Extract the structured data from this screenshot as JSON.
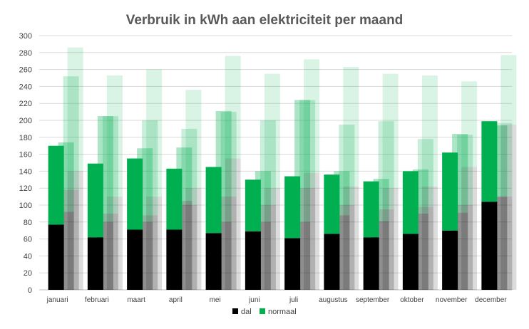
{
  "chart_data": {
    "type": "bar",
    "stacked": true,
    "title": "Verbruik in kWh aan elektriciteit per maand",
    "xlabel": "",
    "ylabel": "",
    "ylim": [
      0,
      300
    ],
    "yticks": [
      0,
      20,
      40,
      60,
      80,
      100,
      120,
      140,
      160,
      180,
      200,
      220,
      240,
      260,
      280,
      300
    ],
    "grid": true,
    "legend_position": "bottom",
    "categories": [
      "januari",
      "februari",
      "maart",
      "april",
      "mei",
      "juni",
      "juli",
      "augustus",
      "september",
      "oktober",
      "november",
      "december"
    ],
    "series": [
      {
        "name": "dal",
        "color": "#000000",
        "values": [
          77,
          62,
          71,
          71,
          67,
          69,
          61,
          66,
          62,
          66,
          70,
          104
        ]
      },
      {
        "name": "normaal",
        "color": "#00b050",
        "values": [
          93,
          87,
          84,
          72,
          78,
          61,
          73,
          70,
          66,
          74,
          92,
          95
        ]
      }
    ],
    "ghost_layers": [
      {
        "opacity": 0.55,
        "dal": [
          92,
          80,
          80,
          105,
          80,
          80,
          80,
          88,
          81,
          90,
          91,
          110
        ],
        "normaal": [
          82,
          125,
          87,
          63,
          131,
          60,
          144,
          52,
          50,
          52,
          93,
          84
        ]
      },
      {
        "opacity": 0.35,
        "dal": [
          118,
          90,
          88,
          100,
          110,
          100,
          120,
          100,
          95,
          98,
          100,
          110
        ],
        "normaal": [
          134,
          115,
          112,
          90,
          100,
          100,
          104,
          95,
          104,
          80,
          83,
          87
        ]
      },
      {
        "opacity": 0.25,
        "dal": [
          140,
          110,
          110,
          120,
          155,
          120,
          138,
          122,
          120,
          122,
          145,
          195
        ],
        "normaal": [
          146,
          143,
          150,
          116,
          121,
          135,
          134,
          141,
          135,
          131,
          101,
          82
        ]
      }
    ]
  }
}
